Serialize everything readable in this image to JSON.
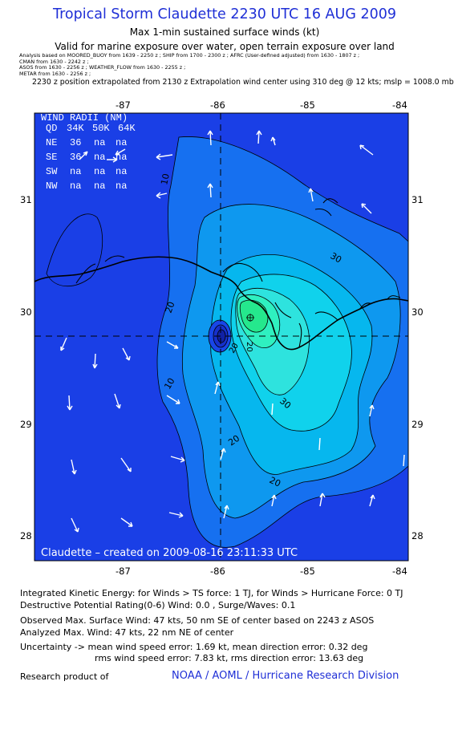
{
  "header": {
    "title": "Tropical Storm Claudette 2230 UTC 16 AUG 2009",
    "subtitle1": "Max 1-min sustained surface winds (kt)",
    "subtitle2": "Valid for marine exposure over water, open terrain exposure over land",
    "analysis_lines": [
      "Analysis based on  MOORED_BUOY from 1639 - 2250 z ;  SHIP from 1700 - 2300 z ;  AFRC (User-defined adjusted) from 1630 - 1807 z ;",
      "CMAN from 1630 - 2242 z ;",
      "ASOS from 1630 - 2256 z ; WEATHER_FLOW from 1630 - 2255 z ;",
      "METAR from 1630 - 2256 z ;"
    ],
    "position_note": "2230 z position extrapolated from 2130 z Extrapolation wind center using 310 deg @ 12 kts; mslp = 1008.0 mb"
  },
  "map": {
    "lon_ticks": [
      "-87",
      "-86",
      "-85",
      "-84"
    ],
    "lat_ticks": [
      "31",
      "30",
      "29",
      "28"
    ],
    "contour_labels": [
      "10",
      "20",
      "30",
      "20",
      "20",
      "10",
      "20",
      "30",
      "20"
    ],
    "credit": "Claudette  –  created on 2009-08-16 23:11:33 UTC",
    "colors": {
      "lt10": "#1a3fe6",
      "10-15": "#1670f0",
      "15-20": "#0e98ef",
      "20-25": "#06b7ee",
      "25-30": "#10d2ec",
      "30-35": "#2ee3de",
      "35-40": "#2ff0c0",
      "40+": "#25e88d",
      "center_low": "#1021a6"
    }
  },
  "wind_radii": {
    "title": "WIND RADII (NM)",
    "header": [
      "QD",
      "34K",
      "50K",
      "64K"
    ],
    "rows": [
      [
        "NE",
        "36",
        "na",
        "na"
      ],
      [
        "SE",
        "36",
        "na",
        "na"
      ],
      [
        "SW",
        "na",
        "na",
        "na"
      ],
      [
        "NW",
        "na",
        "na",
        "na"
      ]
    ]
  },
  "footer": {
    "ike": "Integrated Kinetic Energy:  for Winds > TS force: 1 TJ,  for Winds > Hurricane Force: 0 TJ",
    "dpr": "Destructive Potential Rating(0-6)   Wind: 0.0 , Surge/Waves: 0.1",
    "obs": "Observed Max. Surface Wind: 47 kts, 50 nm SE of center based on 2243 z ASOS",
    "ana": "Analyzed Max. Wind: 47 kts, 22 nm NE of center",
    "unc1": "Uncertainty -> mean wind speed error: 1.69 kt,   mean direction error: 0.32 deg",
    "unc2": "rms wind speed error: 7.83 kt,   rms direction error: 13.63 deg",
    "research": "Research product of",
    "org": "NOAA / AOML / Hurricane Research Division"
  }
}
